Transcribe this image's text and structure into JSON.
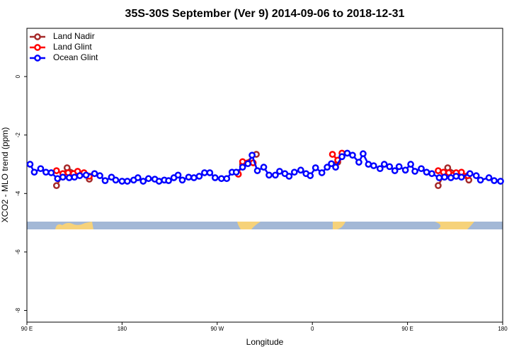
{
  "chart_data": {
    "type": "line",
    "title": "35S-30S September (Ver 9)   2014-09-06 to 2018-12-31",
    "x_label": "Longitude",
    "y_label": "XCO2 - MLO trend (ppm)",
    "xlim": [
      90,
      540
    ],
    "ylim": [
      -8.4,
      1.65
    ],
    "xticks": [
      {
        "value": 90,
        "label": "90 E"
      },
      180,
      {
        "value": 270,
        "label": "90 W"
      },
      {
        "value": 360,
        "label": "0"
      },
      {
        "value": 450,
        "label": "90 E"
      },
      {
        "value": 540,
        "label": "180"
      }
    ],
    "yticks": [
      0,
      -2,
      -4,
      -6,
      -8
    ],
    "legend": "top-left",
    "series": [
      {
        "name": "Land Nadir",
        "color": "#a52a2a",
        "x": [
          118,
          128,
          149,
          294,
          307,
          384,
          479,
          488,
          508
        ],
        "values": [
          -3.73,
          -3.12,
          -3.51,
          -3.0,
          -2.66,
          -2.93,
          -3.73,
          -3.12,
          -3.54
        ]
      },
      {
        "name": "Land Glint",
        "color": "#ff0000",
        "x": [
          118,
          124,
          129,
          134,
          138,
          144,
          149,
          290,
          294,
          299,
          304,
          379,
          384,
          388,
          479,
          484,
          489,
          496,
          501,
          507
        ],
        "values": [
          -3.22,
          -3.32,
          -3.29,
          -3.32,
          -3.24,
          -3.29,
          -3.41,
          -3.34,
          -2.91,
          -2.95,
          -2.95,
          -2.66,
          -2.86,
          -2.62,
          -3.22,
          -3.27,
          -3.29,
          -3.29,
          -3.27,
          -3.39
        ]
      },
      {
        "name": "Ocean Glint",
        "color": "#0000ff",
        "x": [
          93,
          97,
          103,
          108,
          113,
          119,
          124,
          130,
          135,
          140,
          146,
          154,
          159,
          164,
          170,
          174,
          180,
          185,
          191,
          195,
          200,
          205,
          211,
          215,
          220,
          224,
          229,
          233,
          237,
          243,
          248,
          253,
          258,
          263,
          268,
          274,
          279,
          284,
          288,
          294,
          299,
          303,
          308,
          314,
          319,
          325,
          329,
          334,
          338,
          343,
          349,
          354,
          358,
          363,
          369,
          374,
          378,
          382,
          388,
          393,
          398,
          404,
          408,
          413,
          418,
          424,
          428,
          433,
          438,
          442,
          448,
          453,
          457,
          463,
          468,
          473,
          480,
          485,
          491,
          496,
          501,
          509,
          515,
          519,
          527,
          532,
          538
        ],
        "values": [
          -3.0,
          -3.27,
          -3.15,
          -3.27,
          -3.29,
          -3.49,
          -3.44,
          -3.46,
          -3.44,
          -3.39,
          -3.37,
          -3.32,
          -3.39,
          -3.56,
          -3.44,
          -3.54,
          -3.58,
          -3.58,
          -3.54,
          -3.46,
          -3.58,
          -3.49,
          -3.51,
          -3.58,
          -3.54,
          -3.56,
          -3.46,
          -3.37,
          -3.54,
          -3.44,
          -3.46,
          -3.41,
          -3.29,
          -3.29,
          -3.46,
          -3.49,
          -3.49,
          -3.27,
          -3.27,
          -3.1,
          -2.98,
          -2.69,
          -3.22,
          -3.1,
          -3.37,
          -3.37,
          -3.24,
          -3.32,
          -3.41,
          -3.27,
          -3.2,
          -3.32,
          -3.39,
          -3.12,
          -3.29,
          -3.1,
          -2.98,
          -3.1,
          -2.74,
          -2.62,
          -2.69,
          -2.93,
          -2.64,
          -3.0,
          -3.05,
          -3.15,
          -3.0,
          -3.08,
          -3.22,
          -3.08,
          -3.2,
          -3.0,
          -3.24,
          -3.15,
          -3.27,
          -3.32,
          -3.46,
          -3.44,
          -3.46,
          -3.41,
          -3.44,
          -3.32,
          -3.39,
          -3.54,
          -3.46,
          -3.56,
          -3.58
        ]
      }
    ]
  }
}
